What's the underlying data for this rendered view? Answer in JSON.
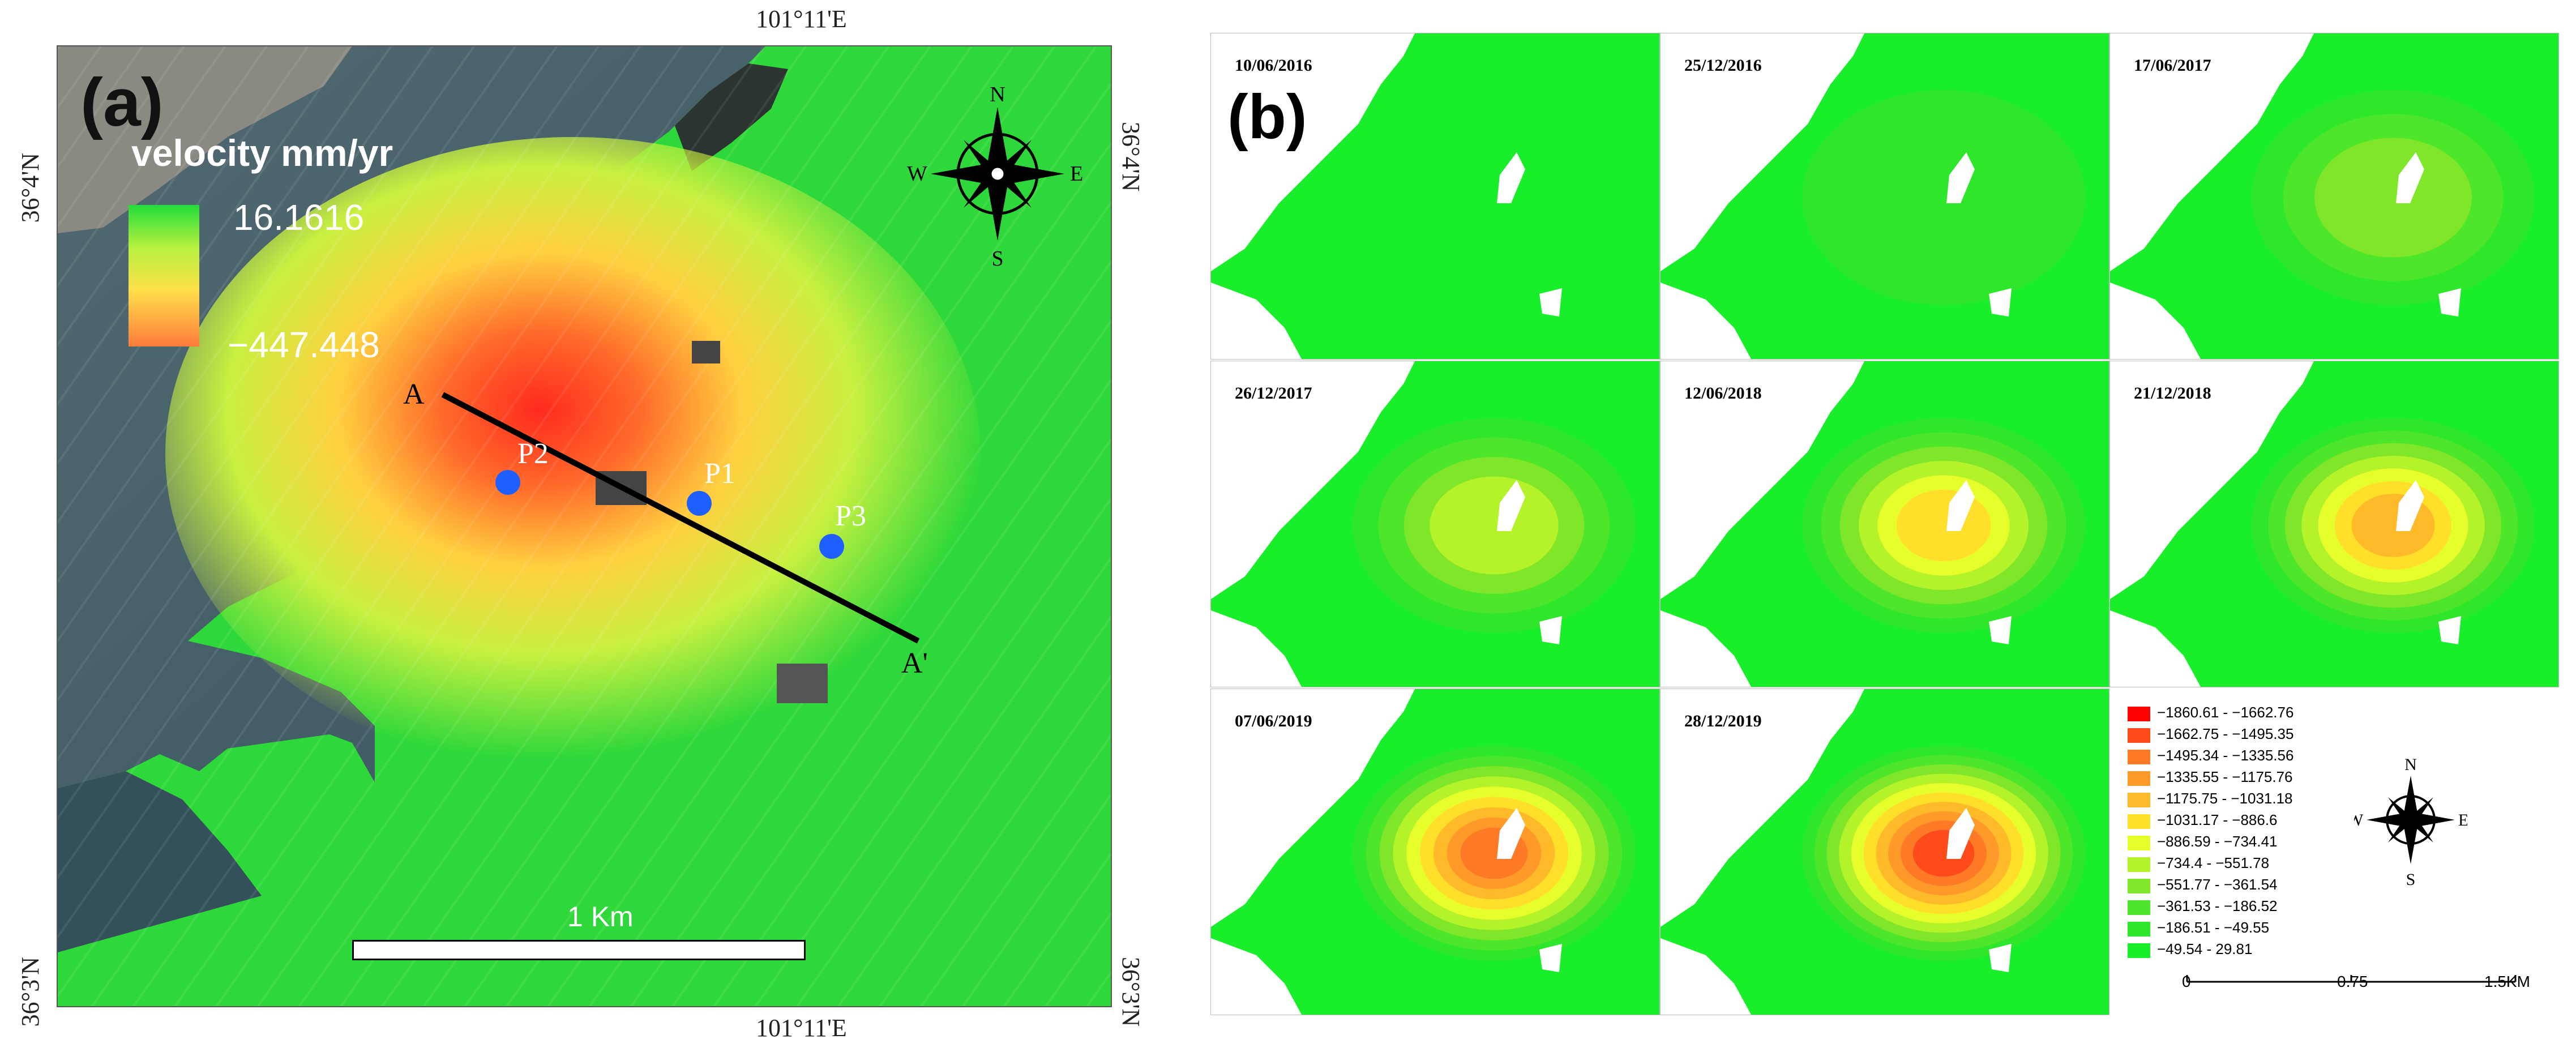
{
  "panel_a": {
    "label": "(a)",
    "legend_title": "velocity mm/yr",
    "legend_max": "16.1616",
    "legend_min": "−447.448",
    "coordinate_labels": {
      "top_lon": "101°11'E",
      "bottom_lon": "101°11'E",
      "left_top_lat": "36°4'N",
      "left_bottom_lat": "36°3'N",
      "right_top_lat": "36°4'N",
      "right_bottom_lat": "36°3'N"
    },
    "north_arrow": {
      "n": "N",
      "s": "S",
      "e": "E",
      "w": "W"
    },
    "points": [
      {
        "label": "P1",
        "color": "#1f5fff"
      },
      {
        "label": "P2",
        "color": "#1f5fff"
      },
      {
        "label": "P3",
        "color": "#1f5fff"
      }
    ],
    "profile_line": {
      "start": "A",
      "end": "A'"
    },
    "scale_bar_label": "1 Km",
    "colors": {
      "water": "#3c5560",
      "high": "#22dd3a",
      "low": "#ff3a2a"
    }
  },
  "panel_b": {
    "label": "(b)",
    "dates": [
      "10/06/2016",
      "25/12/2016",
      "17/06/2017",
      "26/12/2017",
      "12/06/2018",
      "21/12/2018",
      "07/06/2019",
      "28/12/2019"
    ],
    "legend": [
      {
        "range": "−1860.61 - −1662.76",
        "color": "#ff0000"
      },
      {
        "range": "−1662.75 - −1495.35",
        "color": "#ff4a1a"
      },
      {
        "range": "−1495.34 - −1335.56",
        "color": "#ff7a26"
      },
      {
        "range": "−1335.55 - −1175.76",
        "color": "#ff9a2a"
      },
      {
        "range": "−1175.75 - −1031.18",
        "color": "#ffba2a"
      },
      {
        "range": "−1031.17 - −886.6",
        "color": "#ffdf2a"
      },
      {
        "range": "−886.59 - −734.41",
        "color": "#e6ff2a"
      },
      {
        "range": "−734.4 - −551.78",
        "color": "#b4f22a"
      },
      {
        "range": "−551.77 - −361.54",
        "color": "#7fe62a"
      },
      {
        "range": "−361.53 - −186.52",
        "color": "#4ee62a"
      },
      {
        "range": "−186.51 - −49.55",
        "color": "#2ee62a"
      },
      {
        "range": "−49.54 - 29.81",
        "color": "#18ef2a"
      }
    ],
    "north_arrow": {
      "n": "N",
      "s": "S",
      "e": "E",
      "w": "W"
    },
    "scale": {
      "ticks": [
        "0",
        "0.75",
        "1.5KM"
      ]
    }
  }
}
